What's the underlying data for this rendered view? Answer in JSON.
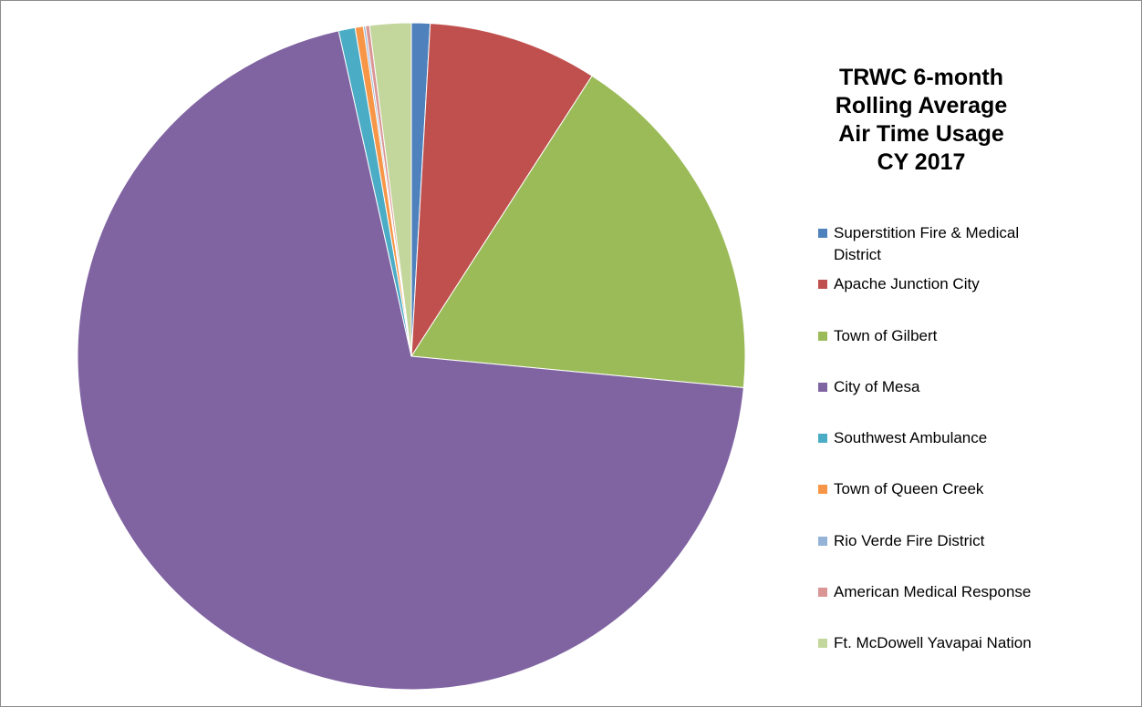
{
  "chart_data": {
    "type": "pie",
    "title": "TRWC 6-month Rolling Average Air Time Usage CY 2017",
    "title_lines": [
      "TRWC 6-month",
      "Rolling Average",
      "Air Time Usage",
      "CY 2017"
    ],
    "start_angle_deg": 0,
    "direction": "clockwise",
    "legend_position": "right",
    "slices": [
      {
        "label": "Superstition Fire & Medical District",
        "label_lines": [
          "Superstition Fire & Medical",
          "District"
        ],
        "value": 0.9,
        "color": "#4F81BD"
      },
      {
        "label": "Apache Junction City",
        "value": 8.2,
        "color": "#C0504D"
      },
      {
        "label": "Town of Gilbert",
        "value": 17.4,
        "color": "#9BBB59"
      },
      {
        "label": "City of Mesa",
        "value": 70.0,
        "color": "#8064A2"
      },
      {
        "label": "Southwest Ambulance",
        "value": 0.8,
        "color": "#4BACC6"
      },
      {
        "label": "Town of Queen Creek",
        "value": 0.4,
        "color": "#F79646"
      },
      {
        "label": "Rio Verde Fire District",
        "value": 0.1,
        "color": "#95B3D7"
      },
      {
        "label": "American Medical Response",
        "value": 0.2,
        "color": "#D99694"
      },
      {
        "label": "Ft. McDowell Yavapai Nation",
        "value": 2.0,
        "color": "#C3D69B"
      }
    ]
  }
}
